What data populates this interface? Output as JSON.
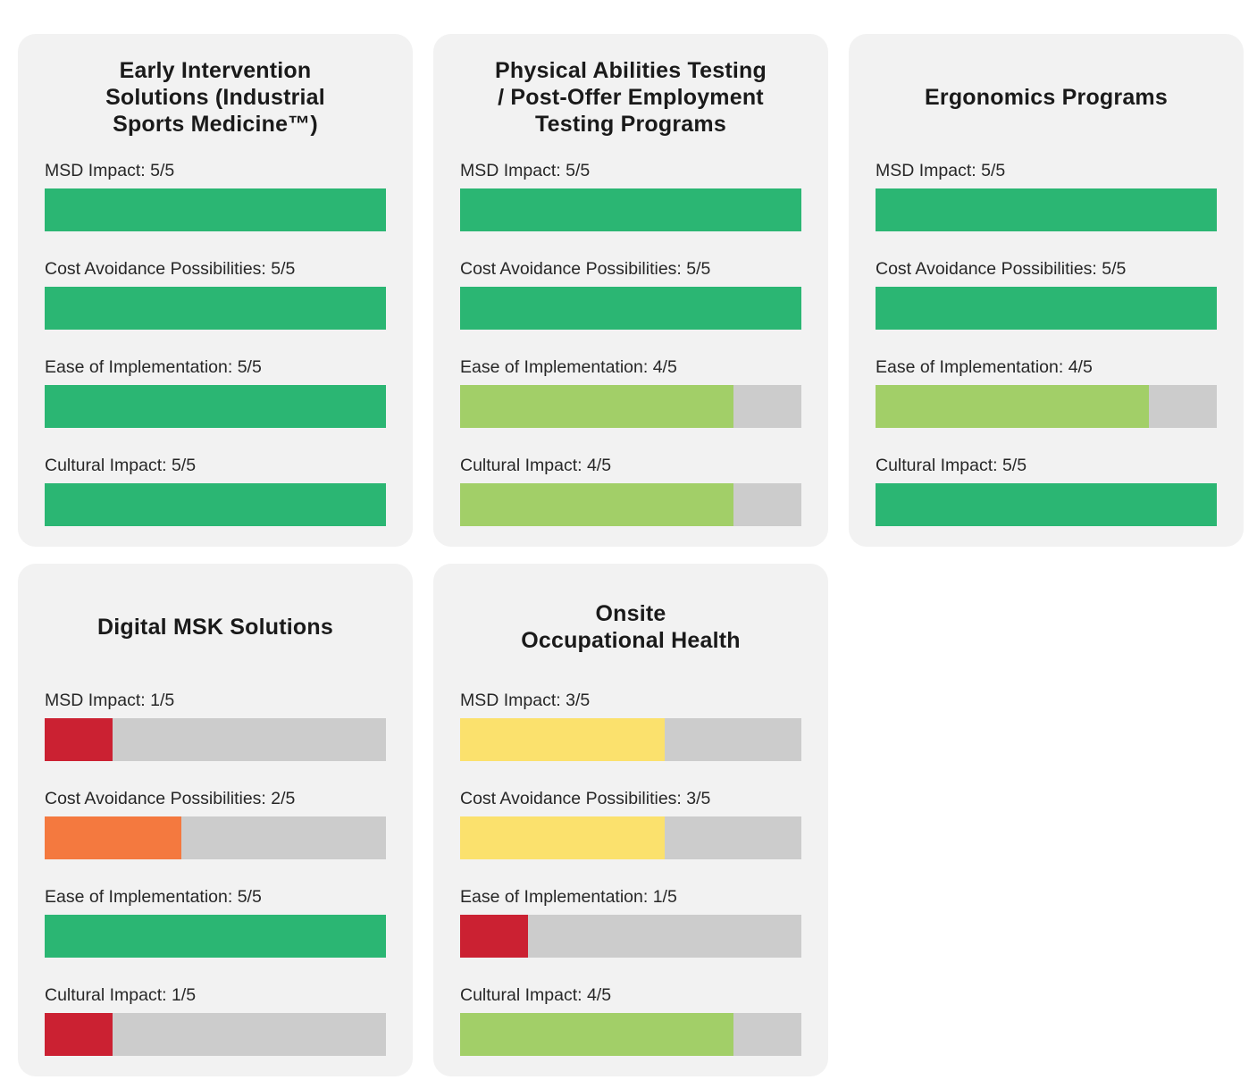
{
  "page": {
    "background": "#ffffff"
  },
  "colors": {
    "card_bg": "#f2f2f2",
    "track": "#cccccc",
    "title_text": "#1a1a1a",
    "label_text": "#272727",
    "score_colors": {
      "1": "#cb2132",
      "2": "#f4793f",
      "3": "#fbe16d",
      "4": "#a2cf68",
      "5": "#2bb673"
    }
  },
  "chart_data": [
    {
      "type": "bar",
      "title": "Early Intervention Solutions (Industrial Sports Medicine™)",
      "title_lines": [
        "Early Intervention",
        "Solutions (Industrial",
        "Sports Medicine™)"
      ],
      "categories": [
        "MSD Impact",
        "Cost Avoidance Possibilities",
        "Ease of Implementation",
        "Cultural Impact"
      ],
      "values": [
        5,
        5,
        5,
        5
      ],
      "max": 5,
      "value_labels": [
        "MSD Impact: 5/5",
        "Cost Avoidance Possibilities: 5/5",
        "Ease of Implementation: 5/5",
        "Cultural Impact: 5/5"
      ],
      "legend": "none",
      "grid": false
    },
    {
      "type": "bar",
      "title": "Physical Abilities Testing / Post-Offer Employment Testing Programs",
      "title_lines": [
        "Physical Abilities Testing",
        "/ Post-Offer Employment",
        "Testing Programs"
      ],
      "categories": [
        "MSD Impact",
        "Cost Avoidance Possibilities",
        "Ease of Implementation",
        "Cultural Impact"
      ],
      "values": [
        5,
        5,
        4,
        4
      ],
      "max": 5,
      "value_labels": [
        "MSD Impact: 5/5",
        "Cost Avoidance Possibilities: 5/5",
        "Ease of Implementation: 4/5",
        "Cultural Impact: 4/5"
      ],
      "legend": "none",
      "grid": false
    },
    {
      "type": "bar",
      "title": "Ergonomics Programs",
      "title_lines": [
        "Ergonomics Programs"
      ],
      "categories": [
        "MSD Impact",
        "Cost Avoidance Possibilities",
        "Ease of Implementation",
        "Cultural Impact"
      ],
      "values": [
        5,
        5,
        4,
        5
      ],
      "max": 5,
      "value_labels": [
        "MSD Impact: 5/5",
        "Cost Avoidance Possibilities: 5/5",
        "Ease of Implementation: 4/5",
        "Cultural Impact: 5/5"
      ],
      "legend": "none",
      "grid": false
    },
    {
      "type": "bar",
      "title": "Digital MSK Solutions",
      "title_lines": [
        "Digital MSK Solutions"
      ],
      "categories": [
        "MSD Impact",
        "Cost Avoidance Possibilities",
        "Ease of Implementation",
        "Cultural Impact"
      ],
      "values": [
        1,
        2,
        5,
        1
      ],
      "max": 5,
      "value_labels": [
        "MSD Impact: 1/5",
        "Cost Avoidance Possibilities: 2/5",
        "Ease of Implementation: 5/5",
        "Cultural Impact: 1/5"
      ],
      "legend": "none",
      "grid": false
    },
    {
      "type": "bar",
      "title": "Onsite Occupational Health",
      "title_lines": [
        "Onsite",
        "Occupational Health"
      ],
      "categories": [
        "MSD Impact",
        "Cost Avoidance Possibilities",
        "Ease of Implementation",
        "Cultural Impact"
      ],
      "values": [
        3,
        3,
        1,
        4
      ],
      "max": 5,
      "value_labels": [
        "MSD Impact: 3/5",
        "Cost Avoidance Possibilities: 3/5",
        "Ease of Implementation: 1/5",
        "Cultural Impact: 4/5"
      ],
      "legend": "none",
      "grid": false
    }
  ]
}
